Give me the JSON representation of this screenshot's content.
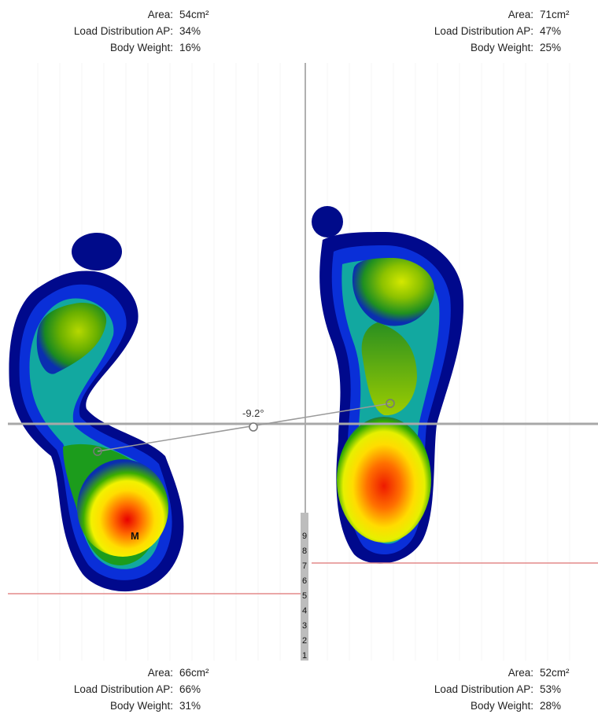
{
  "stats": {
    "top_left": {
      "area_label": "Area:",
      "area": "54cm²",
      "load_label": "Load Distribution AP:",
      "load": "34%",
      "bw_label": "Body Weight:",
      "bw": "16%"
    },
    "top_right": {
      "area_label": "Area:",
      "area": "71cm²",
      "load_label": "Load Distribution AP:",
      "load": "47%",
      "bw_label": "Body Weight:",
      "bw": "25%"
    },
    "bottom_left": {
      "area_label": "Area:",
      "area": "66cm²",
      "load_label": "Load Distribution AP:",
      "load": "66%",
      "bw_label": "Body Weight:",
      "bw": "31%"
    },
    "bottom_right": {
      "area_label": "Area:",
      "area": "52cm²",
      "load_label": "Load Distribution AP:",
      "load": "53%",
      "bw_label": "Body Weight:",
      "bw": "28%"
    }
  },
  "angle_label": "-9.2°",
  "marker_label": "M",
  "scale_numbers": [
    "9",
    "8",
    "7",
    "6",
    "5",
    "4",
    "3",
    "2",
    "1"
  ],
  "colors": {
    "axis": "#a8a8a8",
    "reference_line": "#e38a8a",
    "connector": "#9a9a9a"
  }
}
